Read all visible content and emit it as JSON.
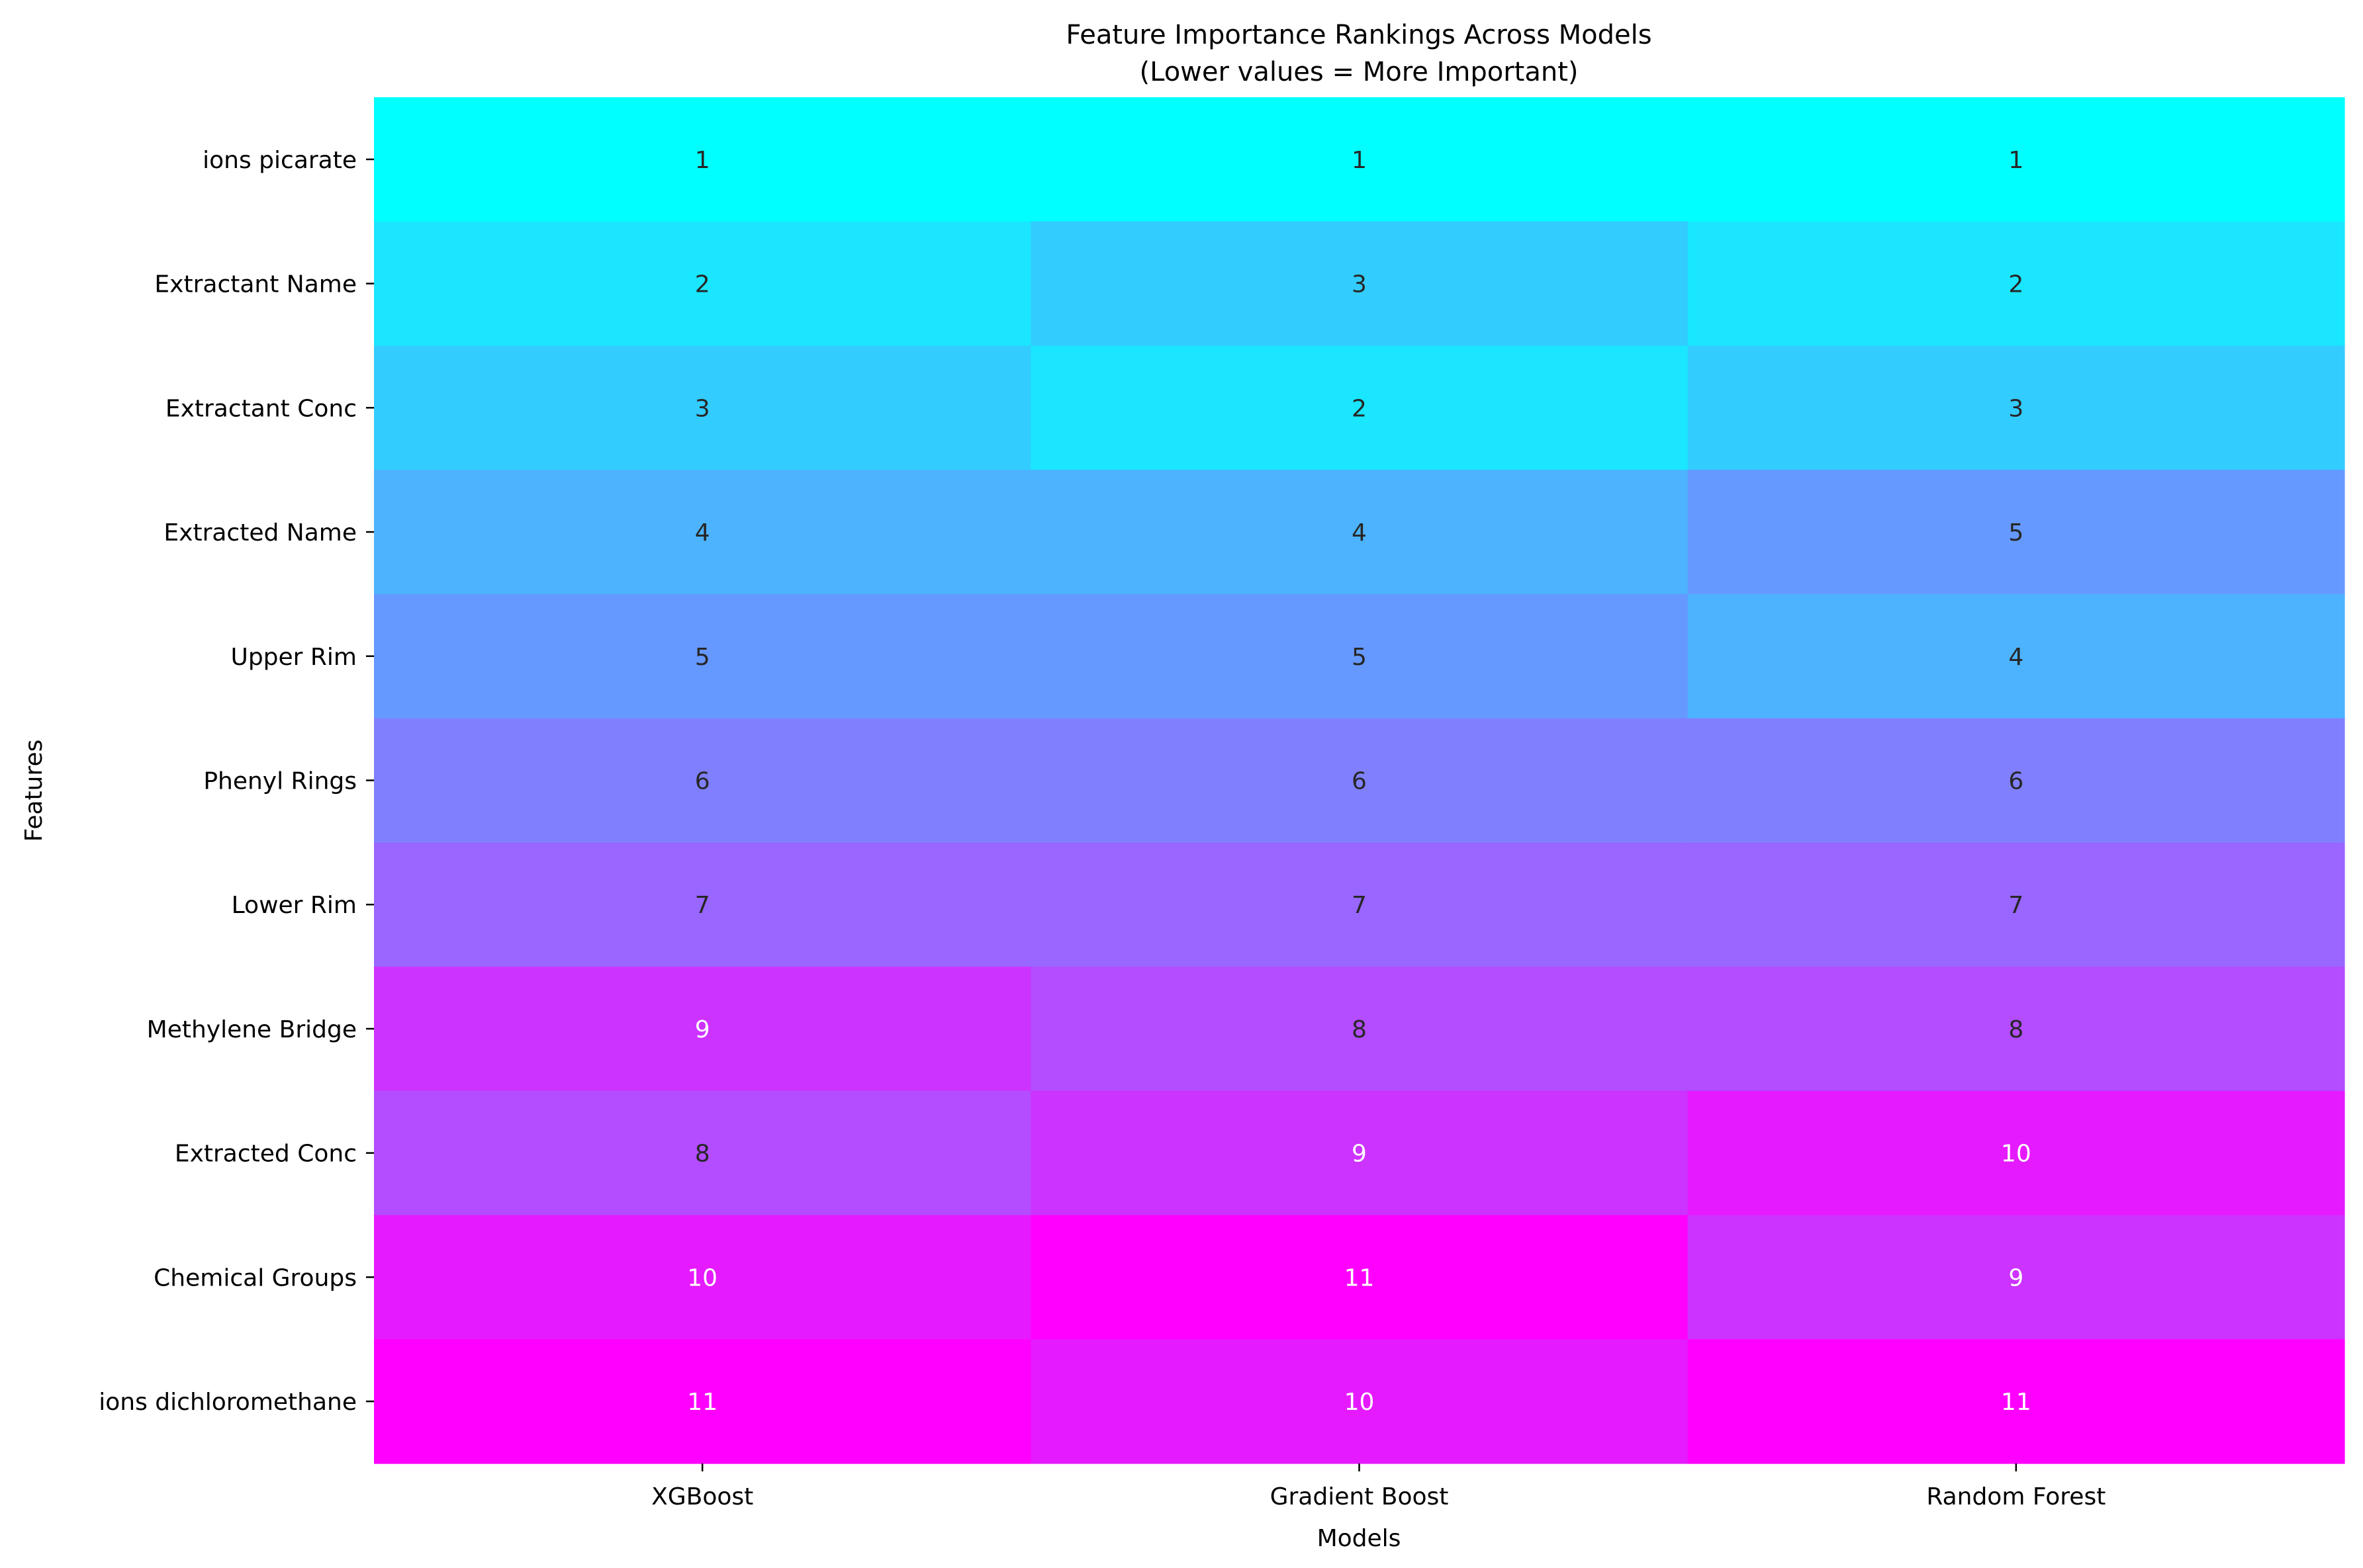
{
  "chart_data": {
    "type": "heatmap",
    "title": "Feature Importance Rankings Across Models",
    "subtitle": "(Lower values = More Important)",
    "xlabel": "Models",
    "ylabel": "Features",
    "columns": [
      "XGBoost",
      "Gradient Boost",
      "Random Forest"
    ],
    "rows": [
      "ions picarate",
      "Extractant Name",
      "Extractant Conc",
      "Extracted Name",
      "Upper Rim",
      "Phenyl Rings",
      "Lower Rim",
      "Methylene Bridge",
      "Extracted Conc",
      "Chemical Groups",
      "ions dichloromethane"
    ],
    "values": [
      [
        1,
        1,
        1
      ],
      [
        2,
        3,
        2
      ],
      [
        3,
        2,
        3
      ],
      [
        4,
        4,
        5
      ],
      [
        5,
        5,
        4
      ],
      [
        6,
        6,
        6
      ],
      [
        7,
        7,
        7
      ],
      [
        9,
        8,
        8
      ],
      [
        8,
        9,
        10
      ],
      [
        10,
        11,
        9
      ],
      [
        11,
        10,
        11
      ]
    ],
    "value_range": [
      1,
      11
    ],
    "colormap": "cool",
    "colormap_start": "#00ffff",
    "colormap_end": "#ff00ff",
    "grid": false,
    "legend": "none"
  }
}
